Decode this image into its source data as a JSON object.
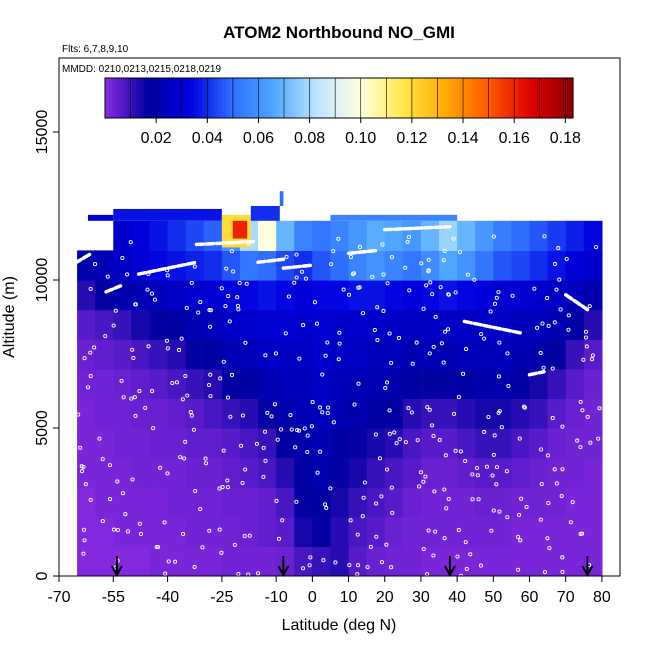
{
  "chart_data": {
    "type": "heatmap",
    "title": "ATOM2 Northbound NO_GMI",
    "flights_label": "Flts: 6,7,8,9,10",
    "dates_label": "MMDD: 0210,0213,0215,0218,0219",
    "xlabel": "Latitude (deg N)",
    "ylabel": "Altitude (m)",
    "xlim": [
      -70,
      85
    ],
    "ylim": [
      0,
      17500
    ],
    "x_ticks": [
      -70,
      -55,
      -40,
      -25,
      -10,
      0,
      10,
      20,
      30,
      40,
      50,
      60,
      70,
      80
    ],
    "y_ticks": [
      0,
      5000,
      10000,
      15000
    ],
    "colorbar": {
      "min": 0.0,
      "max": 0.183,
      "ticks": [
        0.02,
        0.04,
        0.06,
        0.08,
        0.1,
        0.12,
        0.14,
        0.16,
        0.18
      ],
      "tick_labels": [
        "0.02",
        "0.04",
        "0.06",
        "0.08",
        "0.10",
        "0.12",
        "0.14",
        "0.16",
        "0.18"
      ],
      "colors": [
        "#8a2be2",
        "#0000a0",
        "#0000e0",
        "#2f6fff",
        "#4fa8ff",
        "#bfe6ff",
        "#ffffe0",
        "#ffe84a",
        "#ffaa00",
        "#ff5a00",
        "#e00000",
        "#8b0000"
      ]
    },
    "arrow_latitudes": [
      -54,
      -8,
      38,
      76
    ],
    "x_edges": [
      -65,
      -60,
      -55,
      -50,
      -45,
      -40,
      -35,
      -30,
      -25,
      -20,
      -15,
      -10,
      -5,
      0,
      5,
      10,
      15,
      20,
      25,
      30,
      35,
      40,
      45,
      50,
      55,
      60,
      65,
      70,
      75,
      80
    ],
    "z_edges": [
      0,
      1000,
      2000,
      3000,
      4000,
      5000,
      6000,
      7000,
      8000,
      9000,
      10000,
      11000,
      12000
    ],
    "values": [
      [
        0.001,
        0.001,
        0.001,
        0.001,
        0.002,
        0.002,
        0.002,
        0.002,
        0.003,
        0.003,
        0.003,
        0.004,
        0.008,
        0.01,
        0.012,
        0.006,
        0.004,
        0.003,
        0.003,
        0.002,
        0.002,
        0.002,
        0.002,
        0.002,
        0.002,
        0.002,
        0.002,
        0.002,
        0.002
      ],
      [
        0.001,
        0.001,
        0.002,
        0.002,
        0.002,
        0.002,
        0.003,
        0.003,
        0.003,
        0.004,
        0.005,
        0.006,
        0.014,
        0.016,
        0.012,
        0.008,
        0.006,
        0.004,
        0.003,
        0.003,
        0.003,
        0.003,
        0.003,
        0.003,
        0.002,
        0.002,
        0.002,
        0.002,
        0.002
      ],
      [
        0.001,
        0.002,
        0.002,
        0.002,
        0.002,
        0.003,
        0.003,
        0.003,
        0.004,
        0.004,
        0.005,
        0.008,
        0.016,
        0.018,
        0.014,
        0.01,
        0.008,
        0.006,
        0.004,
        0.003,
        0.003,
        0.003,
        0.004,
        0.004,
        0.003,
        0.003,
        0.003,
        0.002,
        0.002
      ],
      [
        0.002,
        0.002,
        0.002,
        0.003,
        0.003,
        0.003,
        0.004,
        0.004,
        0.005,
        0.006,
        0.008,
        0.012,
        0.018,
        0.02,
        0.016,
        0.014,
        0.01,
        0.008,
        0.006,
        0.004,
        0.004,
        0.005,
        0.006,
        0.006,
        0.005,
        0.004,
        0.003,
        0.003,
        0.002
      ],
      [
        0.002,
        0.002,
        0.003,
        0.003,
        0.004,
        0.004,
        0.005,
        0.005,
        0.006,
        0.008,
        0.01,
        0.016,
        0.02,
        0.022,
        0.018,
        0.016,
        0.014,
        0.012,
        0.008,
        0.006,
        0.006,
        0.008,
        0.01,
        0.01,
        0.008,
        0.006,
        0.004,
        0.003,
        0.003
      ],
      [
        0.002,
        0.003,
        0.003,
        0.004,
        0.004,
        0.005,
        0.006,
        0.008,
        0.01,
        0.012,
        0.016,
        0.02,
        0.022,
        0.024,
        0.022,
        0.02,
        0.018,
        0.016,
        0.012,
        0.01,
        0.01,
        0.012,
        0.014,
        0.014,
        0.012,
        0.01,
        0.006,
        0.004,
        0.003
      ],
      [
        0.003,
        0.003,
        0.004,
        0.005,
        0.006,
        0.008,
        0.01,
        0.012,
        0.016,
        0.018,
        0.022,
        0.024,
        0.024,
        0.026,
        0.024,
        0.022,
        0.022,
        0.02,
        0.018,
        0.016,
        0.016,
        0.018,
        0.02,
        0.02,
        0.018,
        0.014,
        0.01,
        0.006,
        0.004
      ],
      [
        0.004,
        0.005,
        0.006,
        0.008,
        0.01,
        0.012,
        0.016,
        0.018,
        0.022,
        0.024,
        0.026,
        0.026,
        0.026,
        0.028,
        0.026,
        0.026,
        0.024,
        0.024,
        0.022,
        0.022,
        0.022,
        0.024,
        0.024,
        0.024,
        0.022,
        0.02,
        0.016,
        0.01,
        0.006
      ],
      [
        0.006,
        0.008,
        0.01,
        0.014,
        0.016,
        0.018,
        0.022,
        0.024,
        0.026,
        0.028,
        0.03,
        0.03,
        0.028,
        0.03,
        0.028,
        0.028,
        0.028,
        0.026,
        0.026,
        0.026,
        0.026,
        0.026,
        0.026,
        0.026,
        0.024,
        0.024,
        0.022,
        0.018,
        0.012
      ],
      [
        0.012,
        0.016,
        0.02,
        0.022,
        0.024,
        0.026,
        0.028,
        0.03,
        0.032,
        0.034,
        0.036,
        0.034,
        0.032,
        0.034,
        0.034,
        0.036,
        0.036,
        0.034,
        0.032,
        0.034,
        0.036,
        0.034,
        0.032,
        0.03,
        0.03,
        0.028,
        0.026,
        0.024,
        0.02
      ],
      [
        0.02,
        0.022,
        0.026,
        0.03,
        0.034,
        0.036,
        0.038,
        0.04,
        0.046,
        0.052,
        0.05,
        0.044,
        0.04,
        0.046,
        0.05,
        0.056,
        0.06,
        0.056,
        0.052,
        0.058,
        0.066,
        0.06,
        0.052,
        0.046,
        0.044,
        0.04,
        0.036,
        0.032,
        0.028
      ],
      [
        null,
        null,
        0.028,
        0.032,
        0.036,
        0.04,
        0.044,
        0.048,
        0.06,
        0.08,
        0.1,
        0.07,
        0.056,
        0.052,
        0.056,
        0.062,
        0.068,
        0.066,
        0.062,
        0.07,
        0.078,
        0.07,
        0.062,
        0.054,
        0.05,
        0.046,
        0.042,
        0.038,
        0.034
      ]
    ],
    "top_cells": [
      {
        "x0": -62,
        "x1": -55,
        "z0": 12000,
        "z1": 12200,
        "v": 0.03
      },
      {
        "x0": -55,
        "x1": -25,
        "z0": 12000,
        "z1": 12400,
        "v": 0.036
      },
      {
        "x0": -25,
        "x1": -17,
        "z0": 11100,
        "z1": 12200,
        "v": 0.12
      },
      {
        "x0": -22,
        "x1": -18,
        "z0": 11400,
        "z1": 12000,
        "v": 0.16
      },
      {
        "x0": -17,
        "x1": -9,
        "z0": 12000,
        "z1": 12500,
        "v": 0.04
      },
      {
        "x0": -9,
        "x1": -8,
        "z0": 12500,
        "z1": 13000,
        "v": 0.05
      },
      {
        "x0": 5,
        "x1": 40,
        "z0": 12000,
        "z1": 12200,
        "v": 0.056
      }
    ],
    "track_segments": [
      {
        "lat": [
          -68,
          -61
        ],
        "alt": [
          10400,
          10900
        ]
      },
      {
        "lat": [
          -57,
          -53
        ],
        "alt": [
          9600,
          9800
        ]
      },
      {
        "lat": [
          -48,
          -32
        ],
        "alt": [
          10200,
          10600
        ]
      },
      {
        "lat": [
          -32,
          -16
        ],
        "alt": [
          11200,
          11300
        ]
      },
      {
        "lat": [
          -15,
          -8
        ],
        "alt": [
          10600,
          10700
        ]
      },
      {
        "lat": [
          -8,
          0
        ],
        "alt": [
          10400,
          10500
        ]
      },
      {
        "lat": [
          10,
          18
        ],
        "alt": [
          10900,
          11000
        ]
      },
      {
        "lat": [
          20,
          38
        ],
        "alt": [
          11700,
          11800
        ]
      },
      {
        "lat": [
          42,
          58
        ],
        "alt": [
          8600,
          8200
        ]
      },
      {
        "lat": [
          60,
          64
        ],
        "alt": [
          6800,
          6900
        ]
      },
      {
        "lat": [
          70,
          76
        ],
        "alt": [
          9500,
          9000
        ]
      }
    ]
  }
}
